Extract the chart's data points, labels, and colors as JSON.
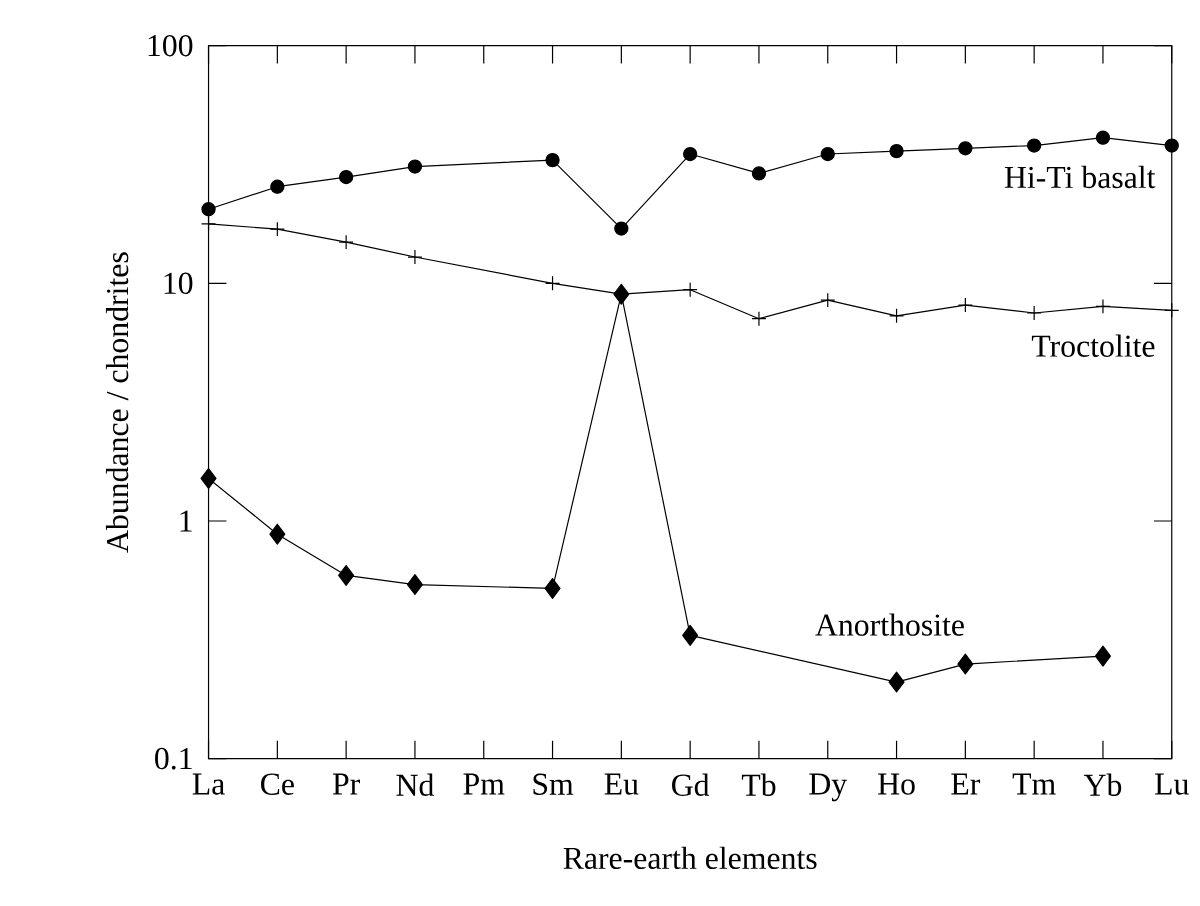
{
  "chart_data": {
    "type": "line",
    "xlabel": "Rare-earth elements",
    "ylabel": "Abundance / chondrites",
    "categories": [
      "La",
      "Ce",
      "Pr",
      "Nd",
      "Pm",
      "Sm",
      "Eu",
      "Gd",
      "Tb",
      "Dy",
      "Ho",
      "Er",
      "Tm",
      "Yb",
      "Lu"
    ],
    "log": "y",
    "ylim": [
      0.1,
      100
    ],
    "yticks": [
      0.1,
      1,
      10,
      100
    ],
    "grid": false,
    "legend": false,
    "line_style": "solid",
    "series": [
      {
        "name": "Hi-Ti basalt",
        "color": "#000000",
        "marker": "circle",
        "values": [
          20.5,
          25.5,
          28,
          31,
          null,
          33,
          17,
          35,
          29,
          35,
          36,
          37,
          38,
          41,
          38
        ]
      },
      {
        "name": "Troctolite",
        "color": "#000000",
        "marker": "cross",
        "values": [
          17.8,
          16.9,
          14.9,
          12.9,
          null,
          10,
          9.0,
          9.4,
          7.1,
          8.5,
          7.3,
          8.1,
          7.5,
          8.0,
          7.7
        ]
      },
      {
        "name": "Anorthosite",
        "color": "#000000",
        "marker": "diamond",
        "values": [
          1.51,
          0.88,
          0.59,
          0.54,
          null,
          0.52,
          9.0,
          0.33,
          null,
          null,
          0.21,
          0.25,
          null,
          0.27,
          null
        ]
      }
    ]
  }
}
